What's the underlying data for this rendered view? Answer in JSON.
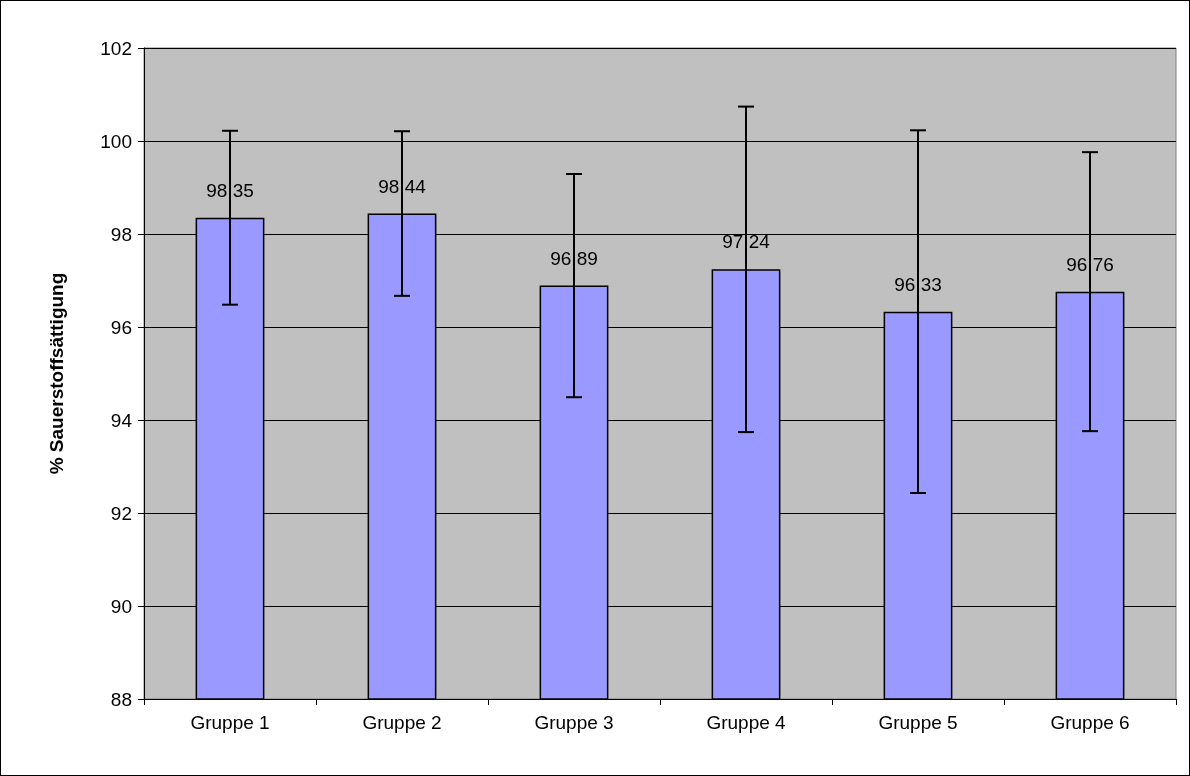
{
  "chart_data": {
    "type": "bar",
    "ylabel": "% Sauerstoffsättigung",
    "categories": [
      "Gruppe 1",
      "Gruppe 2",
      "Gruppe 3",
      "Gruppe 4",
      "Gruppe 5",
      "Gruppe 6"
    ],
    "values": [
      98.35,
      98.44,
      96.89,
      97.24,
      96.33,
      96.76
    ],
    "value_labels": [
      "98,35",
      "98,44",
      "96,89",
      "97,24",
      "96,33",
      "96,76"
    ],
    "errors": [
      1.87,
      1.77,
      2.4,
      3.5,
      3.9,
      3.0
    ],
    "color": "#9999ff",
    "ylim": [
      88,
      102
    ],
    "yticks": [
      88,
      90,
      92,
      94,
      96,
      98,
      100,
      102
    ],
    "grid": "y"
  }
}
